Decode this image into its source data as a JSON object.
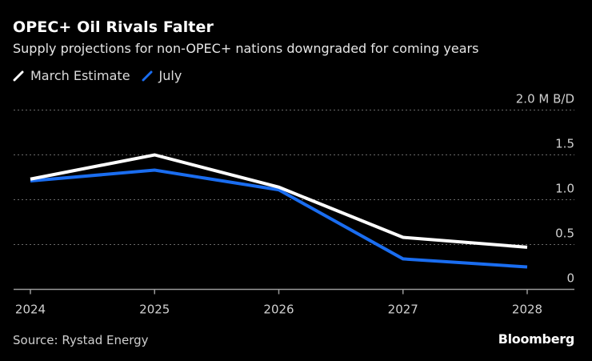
{
  "header": {
    "title": "OPEC+ Oil Rivals Falter",
    "subtitle": "Supply projections for non-OPEC+ nations downgraded for coming years"
  },
  "legend": [
    {
      "label": "March Estimate",
      "color": "#ffffff"
    },
    {
      "label": "July",
      "color": "#1a6df0"
    }
  ],
  "footer": {
    "source": "Source: Rystad Energy",
    "brand": "Bloomberg"
  },
  "chart_data": {
    "type": "line",
    "title": "OPEC+ Oil Rivals Falter",
    "subtitle": "Supply projections for non-OPEC+ nations downgraded for coming years",
    "xlabel": "",
    "ylabel": "M B/D",
    "x": [
      "2024",
      "2025",
      "2026",
      "2027",
      "2028"
    ],
    "series": [
      {
        "name": "March Estimate",
        "color": "#ffffff",
        "values": [
          1.23,
          1.5,
          1.14,
          0.58,
          0.47
        ]
      },
      {
        "name": "July",
        "color": "#1a6df0",
        "values": [
          1.21,
          1.33,
          1.11,
          0.34,
          0.25
        ]
      }
    ],
    "ylim": [
      0,
      2.0
    ],
    "yticks": [
      {
        "value": 0,
        "label": "0"
      },
      {
        "value": 0.5,
        "label": "0.5"
      },
      {
        "value": 1.0,
        "label": "1.0"
      },
      {
        "value": 1.5,
        "label": "1.5"
      },
      {
        "value": 2.0,
        "label": "2.0 M B/D"
      }
    ],
    "grid": true,
    "legend_position": "top-left",
    "y_axis_side": "right"
  }
}
